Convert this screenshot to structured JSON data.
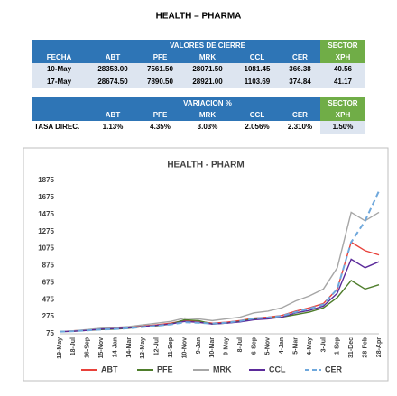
{
  "header": {
    "title": "HEALTH – PHARMA"
  },
  "table1": {
    "group_header": "VALORES DE CIERRE",
    "sector_header": "SECTOR",
    "columns": [
      "FECHA",
      "ABT",
      "PFE",
      "MRK",
      "CCL",
      "CER",
      "XPH"
    ],
    "rows": [
      [
        "10-May",
        "28353.00",
        "7561.50",
        "28071.50",
        "1081.45",
        "366.38",
        "40.56"
      ],
      [
        "17-May",
        "28674.50",
        "7890.50",
        "28921.00",
        "1103.69",
        "374.84",
        "41.17"
      ]
    ]
  },
  "table2": {
    "group_header": "VARIACION %",
    "sector_header": "SECTOR",
    "columns": [
      "ABT",
      "PFE",
      "MRK",
      "CCL",
      "CER",
      "XPH"
    ],
    "rows": [
      [
        "TASA DIREC.",
        "1.13%",
        "4.35%",
        "3.03%",
        "2.056%",
        "2.310%",
        "1.50%"
      ]
    ]
  },
  "chart_data": {
    "type": "line",
    "title": "HEALTH - PHARM",
    "categories": [
      "19-May",
      "18-Jul",
      "16-Sep",
      "15-Nov",
      "14-Jan",
      "14-Mar",
      "13-May",
      "12-Jul",
      "11-Sep",
      "10-Nov",
      "9-Jan",
      "10-Mar",
      "9-May",
      "8-Jul",
      "6-Sep",
      "5-Nov",
      "4-Jan",
      "5-Mar",
      "4-May",
      "3-Jul",
      "1-Sep",
      "31-Dec",
      "28-Feb",
      "28-Apr"
    ],
    "series": [
      {
        "name": "ABT",
        "color": "#e8413a",
        "values": [
          100,
          110,
          120,
          135,
          140,
          150,
          165,
          180,
          200,
          230,
          220,
          200,
          210,
          230,
          260,
          270,
          290,
          340,
          380,
          430,
          600,
          1150,
          1050,
          1000
        ]
      },
      {
        "name": "PFE",
        "color": "#4e7d2b",
        "values": [
          100,
          105,
          115,
          125,
          130,
          140,
          160,
          170,
          190,
          240,
          230,
          190,
          200,
          220,
          250,
          260,
          270,
          300,
          330,
          380,
          500,
          700,
          600,
          650
        ]
      },
      {
        "name": "MRK",
        "color": "#a6a6a6",
        "values": [
          100,
          110,
          125,
          140,
          150,
          160,
          180,
          200,
          220,
          260,
          250,
          230,
          250,
          270,
          320,
          340,
          380,
          460,
          520,
          600,
          850,
          1500,
          1400,
          1500
        ]
      },
      {
        "name": "CCL",
        "color": "#5b2a9a",
        "values": [
          100,
          105,
          115,
          130,
          135,
          145,
          160,
          175,
          190,
          220,
          210,
          190,
          200,
          215,
          240,
          250,
          270,
          320,
          350,
          400,
          550,
          950,
          850,
          920
        ]
      },
      {
        "name": "CER",
        "color": "#6fa8dc",
        "dash": true,
        "values": [
          100,
          105,
          115,
          125,
          130,
          140,
          155,
          170,
          185,
          210,
          205,
          195,
          205,
          225,
          255,
          265,
          285,
          330,
          370,
          420,
          600,
          1150,
          1400,
          1750
        ]
      }
    ],
    "ylim": [
      75,
      1875
    ],
    "yticks": [
      75,
      275,
      475,
      675,
      875,
      1075,
      1275,
      1475,
      1675,
      1875
    ],
    "grid": false
  }
}
